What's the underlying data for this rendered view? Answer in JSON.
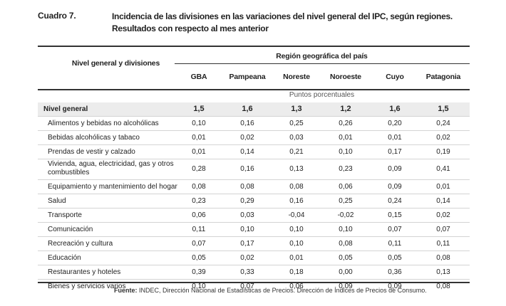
{
  "caption": {
    "label": "Cuadro 7.",
    "title_line1": "Incidencia de las divisiones en las variaciones del nivel general del IPC, según regiones.",
    "title_line2": "Resultados con respecto al mes anterior"
  },
  "table": {
    "stub_header": "Nivel general y divisiones",
    "group_header": "Región geográfica del país",
    "columns": [
      "GBA",
      "Pampeana",
      "Noreste",
      "Noroeste",
      "Cuyo",
      "Patagonia"
    ],
    "units": "Puntos porcentuales",
    "rows": [
      {
        "label": "Nivel general",
        "values": [
          "1,5",
          "1,6",
          "1,3",
          "1,2",
          "1,6",
          "1,5"
        ]
      },
      {
        "label": "Alimentos y bebidas no alcohólicas",
        "values": [
          "0,10",
          "0,16",
          "0,25",
          "0,26",
          "0,20",
          "0,24"
        ]
      },
      {
        "label": "Bebidas alcohólicas y tabaco",
        "values": [
          "0,01",
          "0,02",
          "0,03",
          "0,01",
          "0,01",
          "0,02"
        ]
      },
      {
        "label": "Prendas de vestir y calzado",
        "values": [
          "0,01",
          "0,14",
          "0,21",
          "0,10",
          "0,17",
          "0,19"
        ]
      },
      {
        "label": "Vivienda, agua, electricidad, gas y otros combustibles",
        "values": [
          "0,28",
          "0,16",
          "0,13",
          "0,23",
          "0,09",
          "0,41"
        ]
      },
      {
        "label": "Equipamiento y mantenimiento del hogar",
        "values": [
          "0,08",
          "0,08",
          "0,08",
          "0,06",
          "0,09",
          "0,01"
        ]
      },
      {
        "label": "Salud",
        "values": [
          "0,23",
          "0,29",
          "0,16",
          "0,25",
          "0,24",
          "0,14"
        ]
      },
      {
        "label": "Transporte",
        "values": [
          "0,06",
          "0,03",
          "-0,04",
          "-0,02",
          "0,15",
          "0,02"
        ]
      },
      {
        "label": "Comunicación",
        "values": [
          "0,11",
          "0,10",
          "0,10",
          "0,10",
          "0,07",
          "0,07"
        ]
      },
      {
        "label": "Recreación y cultura",
        "values": [
          "0,07",
          "0,17",
          "0,10",
          "0,08",
          "0,11",
          "0,11"
        ]
      },
      {
        "label": "Educación",
        "values": [
          "0,05",
          "0,02",
          "0,01",
          "0,05",
          "0,05",
          "0,08"
        ]
      },
      {
        "label": "Restaurantes y hoteles",
        "values": [
          "0,39",
          "0,33",
          "0,18",
          "0,00",
          "0,36",
          "0,13"
        ]
      },
      {
        "label": "Bienes y servicios varios",
        "values": [
          "0,10",
          "0,07",
          "0,06",
          "0,09",
          "0,09",
          "0,08"
        ]
      }
    ]
  },
  "source": {
    "label": "Fuente:",
    "text": "INDEC, Dirección Nacional de Estadísticas de Precios. Dirección de Índices de Precios de Consumo."
  }
}
